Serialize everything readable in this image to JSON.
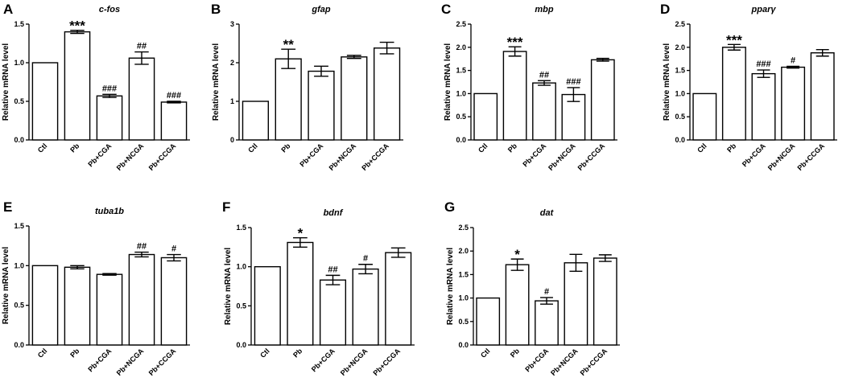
{
  "figure": {
    "ylabel": "Relative mRNA level",
    "categories": [
      "Ctl",
      "Pb",
      "Pb+CGA",
      "Pb+NCGA",
      "Pb+CCGA"
    ]
  },
  "chart_data": [
    {
      "panel": "A",
      "type": "bar",
      "title": "c-fos",
      "ylabel": "Relative mRNA level",
      "categories": [
        "Ctl",
        "Pb",
        "Pb+CGA",
        "Pb+NCGA",
        "Pb+CCGA"
      ],
      "values": [
        1.0,
        1.4,
        0.57,
        1.06,
        0.49
      ],
      "errors": [
        0,
        0.02,
        0.02,
        0.08,
        0.01
      ],
      "annotations": [
        "",
        "***",
        "###",
        "##",
        "###"
      ],
      "ylim": [
        0,
        1.5
      ],
      "yticks": [
        "0.0",
        "0.5",
        "1.0",
        "1.5"
      ]
    },
    {
      "panel": "B",
      "type": "bar",
      "title": "gfap",
      "ylabel": "Relative mRNA level",
      "categories": [
        "Ctl",
        "Pb",
        "Pb+CGA",
        "Pb+NCGA",
        "Pb+CCGA"
      ],
      "values": [
        1.0,
        2.1,
        1.78,
        2.15,
        2.38
      ],
      "errors": [
        0,
        0.25,
        0.13,
        0.04,
        0.15
      ],
      "annotations": [
        "",
        "**",
        "",
        "",
        ""
      ],
      "ylim": [
        0,
        3
      ],
      "yticks": [
        "0",
        "1",
        "2",
        "3"
      ]
    },
    {
      "panel": "C",
      "type": "bar",
      "title": "mbp",
      "ylabel": "Relative mRNA level",
      "categories": [
        "Ctl",
        "Pb",
        "Pb+CGA",
        "Pb+NCGA",
        "Pb+CCGA"
      ],
      "values": [
        1.0,
        1.91,
        1.23,
        0.98,
        1.73
      ],
      "errors": [
        0,
        0.1,
        0.05,
        0.15,
        0.03
      ],
      "annotations": [
        "",
        "***",
        "##",
        "###",
        ""
      ],
      "ylim": [
        0,
        2.5
      ],
      "yticks": [
        "0.0",
        "0.5",
        "1.0",
        "1.5",
        "2.0",
        "2.5"
      ]
    },
    {
      "panel": "D",
      "type": "bar",
      "title": "pparγ",
      "ylabel": "Relative mRNA level",
      "categories": [
        "Ctl",
        "Pb",
        "Pb+CGA",
        "Pb+NCGA",
        "Pb+CCGA"
      ],
      "values": [
        1.0,
        2.0,
        1.43,
        1.57,
        1.88
      ],
      "errors": [
        0,
        0.06,
        0.08,
        0.02,
        0.07
      ],
      "annotations": [
        "",
        "***",
        "###",
        "#",
        ""
      ],
      "ylim": [
        0,
        2.5
      ],
      "yticks": [
        "0.0",
        "0.5",
        "1.0",
        "1.5",
        "2.0",
        "2.5"
      ]
    },
    {
      "panel": "E",
      "type": "bar",
      "title": "tuba1b",
      "ylabel": "Relative mRNA level",
      "categories": [
        "Ctl",
        "Pb",
        "Pb+CGA",
        "Pb+NCGA",
        "Pb+CCGA"
      ],
      "values": [
        1.0,
        0.98,
        0.89,
        1.14,
        1.1
      ],
      "errors": [
        0,
        0.02,
        0.01,
        0.03,
        0.04
      ],
      "annotations": [
        "",
        "",
        "",
        "##",
        "#"
      ],
      "ylim": [
        0,
        1.5
      ],
      "yticks": [
        "0.0",
        "0.5",
        "1.0",
        "1.5"
      ]
    },
    {
      "panel": "F",
      "type": "bar",
      "title": "bdnf",
      "ylabel": "Relative mRNA level",
      "categories": [
        "Ctl",
        "Pb",
        "Pb+CGA",
        "Pb+NCGA",
        "Pb+CCGA"
      ],
      "values": [
        1.0,
        1.31,
        0.83,
        0.97,
        1.18
      ],
      "errors": [
        0,
        0.06,
        0.06,
        0.06,
        0.06
      ],
      "annotations": [
        "",
        "*",
        "##",
        "#",
        ""
      ],
      "ylim": [
        0,
        1.5
      ],
      "yticks": [
        "0.0",
        "0.5",
        "1.0",
        "1.5"
      ]
    },
    {
      "panel": "G",
      "type": "bar",
      "title": "dat",
      "ylabel": "Relative mRNA level",
      "categories": [
        "Ctl",
        "Pb",
        "Pb+CGA",
        "Pb+NCGA",
        "Pb+CCGA"
      ],
      "values": [
        1.0,
        1.71,
        0.94,
        1.75,
        1.85
      ],
      "errors": [
        0,
        0.12,
        0.07,
        0.18,
        0.07
      ],
      "annotations": [
        "",
        "*",
        "#",
        "",
        ""
      ],
      "ylim": [
        0,
        2.5
      ],
      "yticks": [
        "0.0",
        "0.5",
        "1.0",
        "1.5",
        "2.0",
        "2.5"
      ]
    }
  ]
}
